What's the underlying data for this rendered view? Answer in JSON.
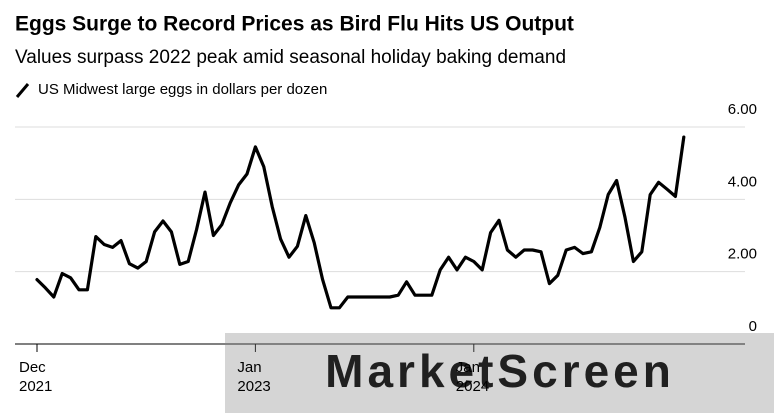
{
  "chart_data": {
    "type": "line",
    "title": "Eggs Surge to Record Prices as Bird Flu Hits US Output",
    "subtitle": "Values surpass 2022 peak amid seasonal holiday baking demand",
    "watermark": "MarketScreen",
    "categories": [
      "Dec 2021",
      null,
      null,
      null,
      null,
      null,
      null,
      null,
      null,
      null,
      null,
      null,
      null,
      null,
      null,
      null,
      null,
      null,
      null,
      null,
      null,
      null,
      null,
      null,
      null,
      null,
      "Jan 2023",
      null,
      null,
      null,
      null,
      null,
      null,
      null,
      null,
      null,
      null,
      null,
      null,
      null,
      null,
      null,
      null,
      null,
      null,
      null,
      null,
      null,
      null,
      null,
      null,
      null,
      "Jan 2024",
      null,
      null,
      null,
      null,
      null,
      null,
      null,
      null,
      null,
      null,
      null,
      null,
      null,
      null,
      null,
      null,
      null,
      null,
      null,
      null,
      null,
      null,
      null,
      null,
      null
    ],
    "series": [
      {
        "name": "US Midwest large eggs in dollars per dozen",
        "color": "#000000",
        "values": [
          1.78,
          1.55,
          1.3,
          1.95,
          1.83,
          1.5,
          1.5,
          2.97,
          2.75,
          2.67,
          2.86,
          2.22,
          2.1,
          2.28,
          3.1,
          3.4,
          3.1,
          2.2,
          2.28,
          3.17,
          4.2,
          3.0,
          3.3,
          3.9,
          4.4,
          4.7,
          5.45,
          4.9,
          3.8,
          2.9,
          2.4,
          2.7,
          3.55,
          2.8,
          1.78,
          1.0,
          1.0,
          1.3,
          1.3,
          1.3,
          1.3,
          1.3,
          1.3,
          1.35,
          1.72,
          1.35,
          1.35,
          1.35,
          2.05,
          2.4,
          2.05,
          2.4,
          2.28,
          2.05,
          3.08,
          3.42,
          2.6,
          2.4,
          2.6,
          2.6,
          2.55,
          1.67,
          1.9,
          2.6,
          2.67,
          2.5,
          2.55,
          3.22,
          4.13,
          4.52,
          3.5,
          2.28,
          2.55,
          4.13,
          4.47,
          4.28,
          4.08,
          5.72
        ]
      }
    ],
    "ylim": [
      0,
      6
    ],
    "yticks": [
      0,
      {
        "value": 2,
        "label": "2.00"
      },
      {
        "value": 4,
        "label": "4.00"
      },
      {
        "value": 6,
        "label": "6.00"
      }
    ],
    "grid": true
  }
}
